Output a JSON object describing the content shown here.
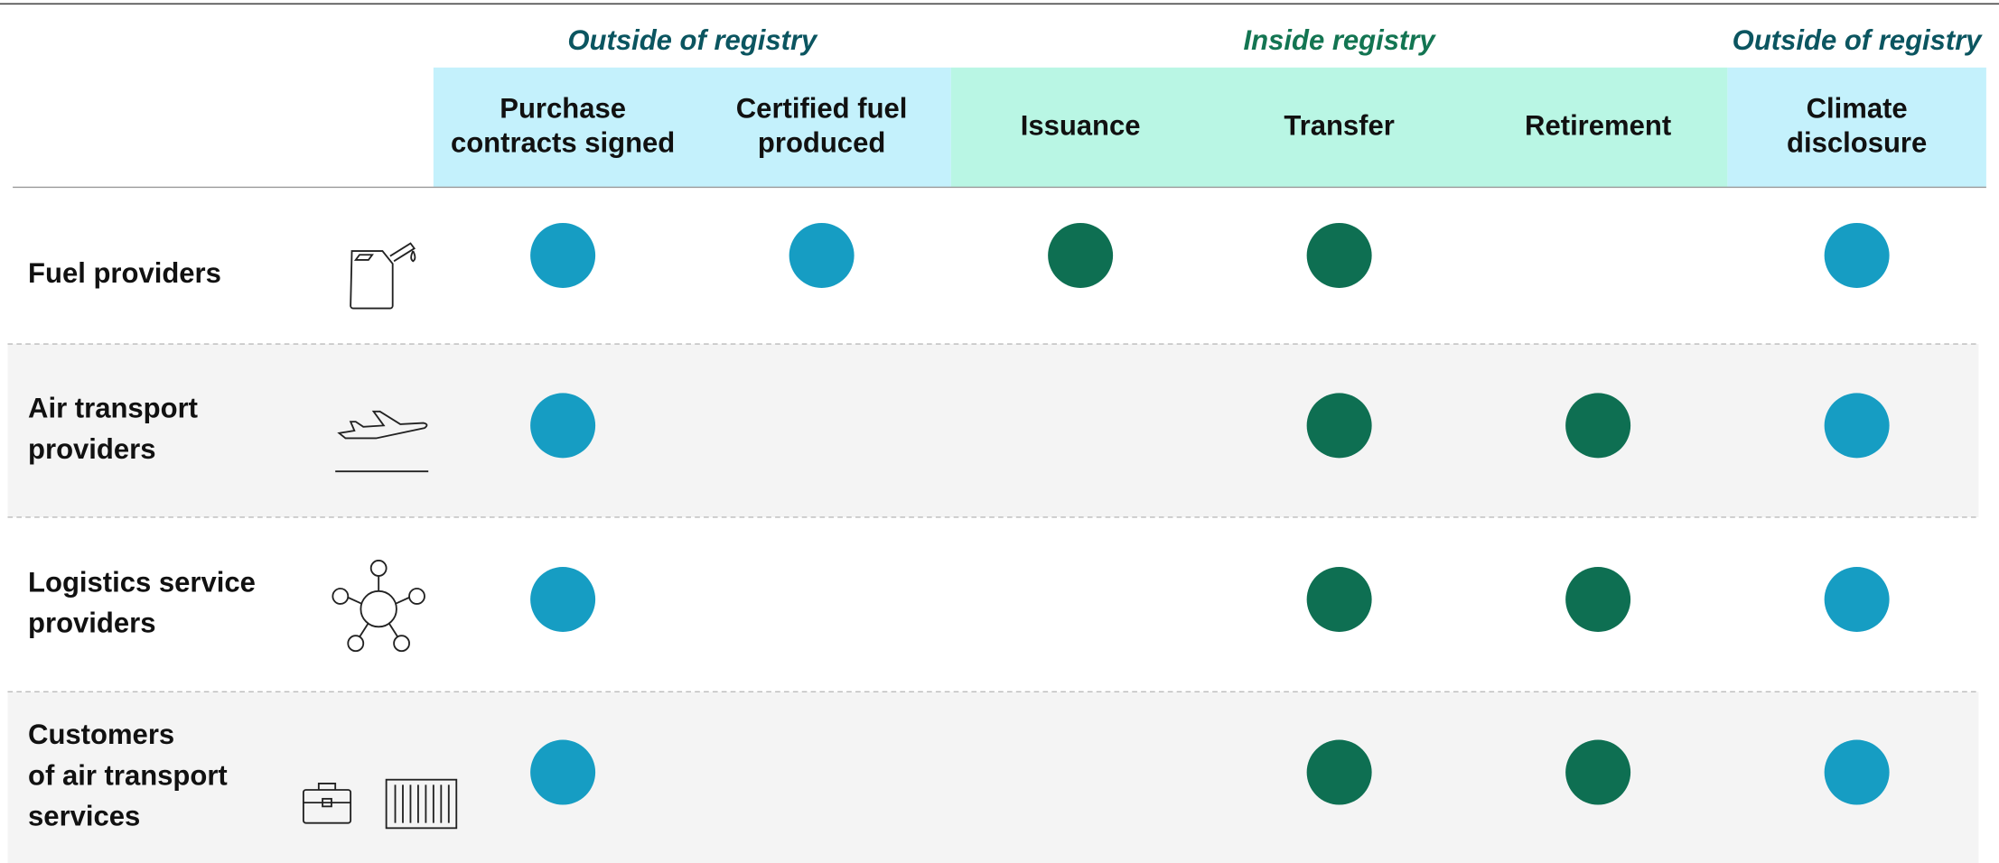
{
  "groups": [
    {
      "label": "Outside of registry",
      "span": 2,
      "band_color": "#c4f1fc",
      "label_color": "#0b5560",
      "dot_color": "#169dc3"
    },
    {
      "label": "Inside registry",
      "span": 3,
      "band_color": "#b9f6e4",
      "label_color": "#137552",
      "dot_color": "#0e6f52"
    },
    {
      "label": "Outside of registry",
      "span": 1,
      "band_color": "#c4f1fc",
      "label_color": "#0b5560",
      "dot_color": "#169dc3"
    }
  ],
  "columns": [
    {
      "label_lines": [
        "Purchase",
        "contracts signed"
      ]
    },
    {
      "label_lines": [
        "Certified fuel",
        "produced"
      ]
    },
    {
      "label_lines": [
        "Issuance"
      ]
    },
    {
      "label_lines": [
        "Transfer"
      ]
    },
    {
      "label_lines": [
        "Retirement"
      ]
    },
    {
      "label_lines": [
        "Climate",
        "disclosure"
      ]
    }
  ],
  "rows": [
    {
      "label_lines": [
        "Fuel providers"
      ],
      "cells": [
        true,
        true,
        true,
        true,
        false,
        true
      ]
    },
    {
      "label_lines": [
        "Air transport",
        "providers"
      ],
      "cells": [
        true,
        false,
        false,
        true,
        true,
        true
      ]
    },
    {
      "label_lines": [
        "Logistics service",
        "providers"
      ],
      "cells": [
        true,
        false,
        false,
        true,
        true,
        true
      ]
    },
    {
      "label_lines": [
        "Customers",
        "of air transport",
        "services"
      ],
      "cells": [
        true,
        false,
        false,
        true,
        true,
        true
      ]
    }
  ]
}
